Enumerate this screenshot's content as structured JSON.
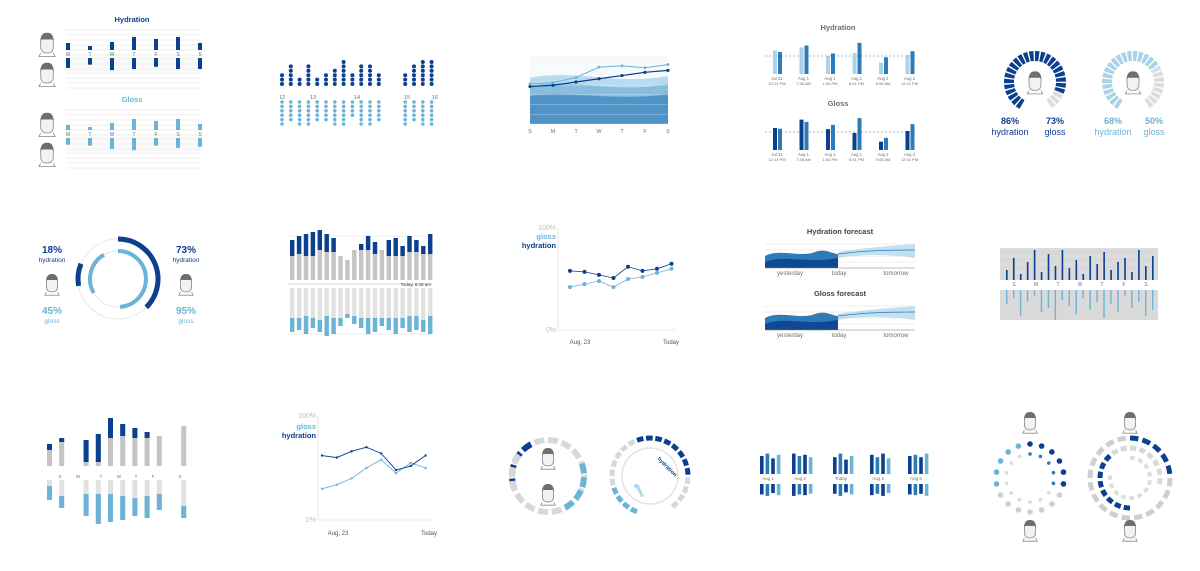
{
  "colors": {
    "dark": "#0b3f8f",
    "mid": "#2e7bb6",
    "light": "#6bb4d8",
    "lighter": "#a9d3e8",
    "grey": "#c4c4c4",
    "greyLight": "#e1e1e1",
    "gridline": "#d6d6d6",
    "text": "#6f6f6f"
  },
  "chart_data": [
    {
      "id": "p1",
      "type": "bar",
      "sections": [
        {
          "title": "Hydration",
          "categories": [
            "M",
            "T",
            "W",
            "T",
            "F",
            "S",
            "S"
          ],
          "up": [
            14,
            8,
            16,
            26,
            22,
            26,
            14
          ],
          "down": [
            18,
            12,
            22,
            20,
            16,
            20,
            20
          ]
        },
        {
          "title": "Gloss",
          "categories": [
            "M",
            "T",
            "W",
            "T",
            "F",
            "S",
            "S"
          ],
          "up": [
            10,
            6,
            14,
            22,
            18,
            22,
            12
          ],
          "down": [
            12,
            14,
            20,
            22,
            14,
            18,
            16
          ]
        }
      ]
    },
    {
      "id": "p2",
      "type": "scatter",
      "x_ticks": [
        "12",
        "13",
        "14",
        "15",
        "16"
      ],
      "dark_counts": [
        3,
        5,
        2,
        5,
        2,
        3,
        4,
        6,
        3,
        5,
        5,
        3,
        0,
        0,
        3,
        5,
        6,
        6
      ],
      "light_counts": [
        6,
        5,
        6,
        6,
        5,
        5,
        6,
        6,
        4,
        6,
        6,
        5,
        0,
        0,
        6,
        5,
        6,
        6
      ]
    },
    {
      "id": "p3",
      "type": "area",
      "categories": [
        "S",
        "M",
        "T",
        "W",
        "T",
        "F",
        "S"
      ],
      "dark_line": [
        58,
        60,
        65,
        70,
        75,
        80,
        83
      ],
      "light_line": [
        62,
        64,
        72,
        88,
        90,
        87,
        92
      ]
    },
    {
      "id": "p4",
      "type": "bar",
      "sections": [
        {
          "title": "Hydration",
          "categories": [
            "Jul 31",
            "Aug 1",
            "Aug 1",
            "Aug 1",
            "Aug 2",
            "Aug 2"
          ],
          "sublabels": [
            "12:14 PM",
            "7:36 AM",
            "1:53 PM",
            "8:41 PM",
            "9:05 AM",
            "12:41 PM"
          ],
          "values": [
            [
              62,
              58
            ],
            [
              70,
              75
            ],
            [
              48,
              54
            ],
            [
              55,
              82
            ],
            [
              30,
              44
            ],
            [
              50,
              60
            ]
          ]
        },
        {
          "title": "Gloss",
          "categories": [
            "Jul 31",
            "Aug 1",
            "Aug 1",
            "Aug 1",
            "Aug 2",
            "Aug 2"
          ],
          "sublabels": [
            "12:14 PM",
            "7:36 AM",
            "1:53 PM",
            "8:41 PM",
            "9:05 AM",
            "12:41 PM"
          ],
          "values": [
            [
              58,
              56
            ],
            [
              80,
              74
            ],
            [
              55,
              66
            ],
            [
              45,
              84
            ],
            [
              22,
              32
            ],
            [
              50,
              68
            ]
          ]
        }
      ]
    },
    {
      "id": "p5",
      "type": "pie",
      "rings": [
        {
          "label": "hydration",
          "value": 86,
          "label_text": "86%"
        },
        {
          "label": "gloss",
          "value": 73,
          "label_text": "73%"
        },
        {
          "label": "hydration",
          "value": 68,
          "label_text": "68%"
        },
        {
          "label": "gloss",
          "value": 50,
          "label_text": "50%"
        }
      ]
    },
    {
      "id": "p6",
      "type": "pie",
      "values": {
        "hydration_left": 18,
        "gloss_left": 45,
        "hydration_right": 73,
        "gloss_right": 95
      },
      "labels": {
        "hydration_left": "18%",
        "gloss_left": "45%",
        "hydration_right": "73%",
        "gloss_right": "95%",
        "hydration": "hydration",
        "gloss": "gloss"
      }
    },
    {
      "id": "p7",
      "type": "bar",
      "annotation": "Today, 8:45 am",
      "top_total": [
        40,
        44,
        46,
        48,
        50,
        46,
        42,
        24,
        20,
        30,
        36,
        44,
        38,
        30,
        40,
        42,
        34,
        44,
        40,
        34,
        46
      ],
      "top_dark": [
        16,
        18,
        22,
        24,
        20,
        18,
        14,
        0,
        0,
        0,
        6,
        14,
        12,
        0,
        16,
        18,
        10,
        16,
        12,
        8,
        20
      ],
      "bottom_total": [
        44,
        42,
        46,
        40,
        44,
        48,
        46,
        38,
        30,
        36,
        40,
        46,
        44,
        38,
        42,
        46,
        40,
        44,
        42,
        44,
        46
      ],
      "bottom_light": [
        14,
        12,
        18,
        10,
        12,
        20,
        16,
        8,
        4,
        8,
        10,
        16,
        14,
        8,
        12,
        16,
        10,
        16,
        14,
        12,
        18
      ]
    },
    {
      "id": "p8",
      "type": "scatter",
      "ylim": [
        0,
        100
      ],
      "y_ticks": [
        "100%",
        "0%"
      ],
      "x_labels": [
        "Aug, 23",
        "Today"
      ],
      "series": [
        {
          "name": "gloss",
          "points": [
            [
              0,
              42
            ],
            [
              1,
              45
            ],
            [
              2,
              48
            ],
            [
              3,
              42
            ],
            [
              4,
              50
            ],
            [
              5,
              52
            ],
            [
              6,
              56
            ],
            [
              7,
              60
            ]
          ]
        },
        {
          "name": "hydration",
          "points": [
            [
              0,
              58
            ],
            [
              1,
              57
            ],
            [
              2,
              54
            ],
            [
              3,
              51
            ],
            [
              4,
              62
            ],
            [
              5,
              58
            ],
            [
              6,
              60
            ],
            [
              7,
              65
            ]
          ]
        }
      ]
    },
    {
      "id": "p9",
      "type": "area",
      "sections": [
        {
          "title": "Hydration forecast",
          "labels": [
            "yesterday",
            "today",
            "tomorrow"
          ]
        },
        {
          "title": "Gloss forecast",
          "labels": [
            "yesterday",
            "today",
            "tomorrow"
          ]
        }
      ]
    },
    {
      "id": "p10",
      "type": "bar",
      "categories": [
        "S",
        "M",
        "T",
        "W",
        "T",
        "F",
        "S"
      ],
      "top_spikes": [
        10,
        22,
        6,
        18,
        30,
        8,
        26,
        14,
        30,
        12,
        20,
        6,
        24,
        16,
        28,
        10,
        18,
        22,
        8,
        30,
        14,
        24
      ],
      "bottom_spikes": [
        14,
        8,
        26,
        12,
        6,
        22,
        18,
        30,
        10,
        16,
        24,
        8,
        20,
        12,
        28,
        14,
        22,
        6,
        18,
        12,
        26,
        20
      ]
    },
    {
      "id": "p11",
      "type": "bar",
      "x_ticks": [
        "S",
        "M",
        "T",
        "W",
        "T",
        "F",
        "S"
      ],
      "top_total": [
        22,
        28,
        0,
        26,
        32,
        48,
        42,
        38,
        34,
        30,
        0,
        40
      ],
      "top_dark": [
        6,
        4,
        0,
        22,
        28,
        20,
        12,
        10,
        6,
        0,
        0,
        0
      ],
      "bottom_total": [
        20,
        28,
        0,
        36,
        44,
        42,
        40,
        36,
        38,
        30,
        0,
        38
      ],
      "bottom_light": [
        14,
        12,
        0,
        22,
        30,
        28,
        24,
        18,
        22,
        16,
        0,
        12
      ]
    },
    {
      "id": "p12",
      "type": "line",
      "ylim": [
        0,
        100
      ],
      "y_ticks": [
        "100%",
        "0%"
      ],
      "x_labels": [
        "Aug, 23",
        "Today"
      ],
      "series": [
        {
          "name": "gloss",
          "values": [
            30,
            34,
            40,
            50,
            58,
            45,
            55,
            50
          ]
        },
        {
          "name": "hydration",
          "values": [
            62,
            60,
            66,
            70,
            64,
            48,
            52,
            62
          ]
        }
      ]
    },
    {
      "id": "p13",
      "type": "pie",
      "rings": [
        {
          "label": "",
          "value": 30
        },
        {
          "label": "",
          "value": 40
        },
        {
          "label": "",
          "value": 55
        },
        {
          "label": "",
          "value": 35
        }
      ],
      "rotated_labels": [
        "hydration",
        "gloss"
      ]
    },
    {
      "id": "p14",
      "type": "bar",
      "categories": [
        "Aug 1",
        "Aug 2",
        "Today",
        "Aug 4",
        "Aug 5"
      ],
      "groups": [
        [
          30,
          34,
          26,
          32
        ],
        [
          34,
          30,
          32,
          28
        ],
        [
          28,
          34,
          24,
          30
        ],
        [
          32,
          28,
          34,
          26
        ],
        [
          30,
          32,
          28,
          34
        ]
      ]
    },
    {
      "id": "p15",
      "type": "pie",
      "rings": [
        {
          "label": "",
          "value": 40
        },
        {
          "label": "",
          "value": 55
        },
        {
          "label": "",
          "value": 30
        },
        {
          "label": "",
          "value": 65
        }
      ]
    }
  ]
}
